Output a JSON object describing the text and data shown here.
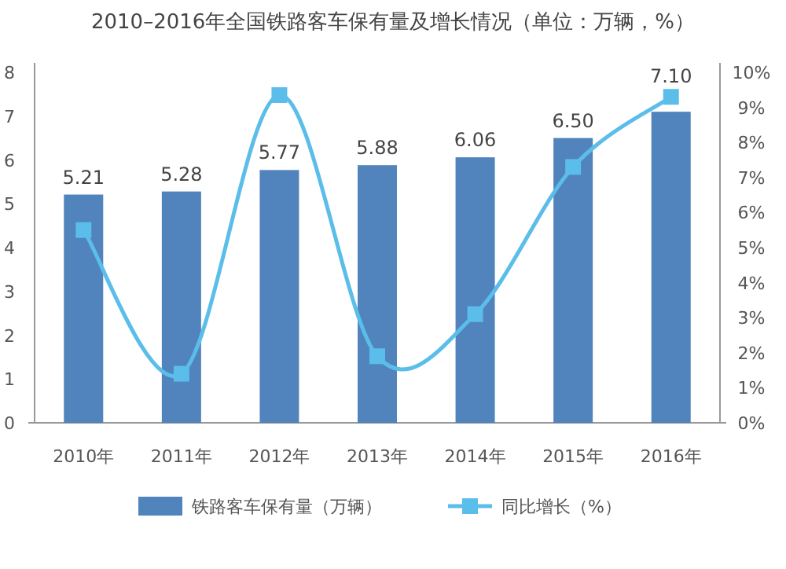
{
  "chart_data": {
    "type": "bar",
    "title": "2010–2016年全国铁路客车保有量及增长情况（单位：万辆，%）",
    "categories": [
      "2010年",
      "2011年",
      "2012年",
      "2013年",
      "2014年",
      "2015年",
      "2016年"
    ],
    "series": [
      {
        "name": "铁路客车保有量（万辆）",
        "color": "#5183bc",
        "values": [
          5.21,
          5.28,
          5.77,
          5.88,
          6.06,
          6.5,
          7.1
        ],
        "value_labels": [
          "5.21",
          "5.28",
          "5.77",
          "5.88",
          "6.06",
          "6.50",
          "7.10"
        ]
      },
      {
        "name": "同比增长（%）",
        "type": "line",
        "axis": "y2",
        "color": "#5bbde9",
        "marker": "square",
        "values": [
          5.5,
          1.4,
          9.35,
          1.9,
          3.1,
          7.3,
          9.3
        ]
      }
    ],
    "ylim": [
      0,
      8
    ],
    "yticks": [
      0,
      1,
      2,
      3,
      4,
      5,
      6,
      7,
      8
    ],
    "y2lim": [
      0,
      10
    ],
    "y2ticks": [
      {
        "value": 0,
        "label": "0%"
      },
      {
        "value": 1,
        "label": "1%"
      },
      {
        "value": 2,
        "label": "2%"
      },
      {
        "value": 3,
        "label": "3%"
      },
      {
        "value": 4,
        "label": "4%"
      },
      {
        "value": 5,
        "label": "5%"
      },
      {
        "value": 6,
        "label": "6%"
      },
      {
        "value": 7,
        "label": "7%"
      },
      {
        "value": 8,
        "label": "8%"
      },
      {
        "value": 9,
        "label": "9%"
      },
      {
        "value": 10,
        "label": "10%"
      }
    ],
    "legend": "bottom",
    "grid": false
  }
}
